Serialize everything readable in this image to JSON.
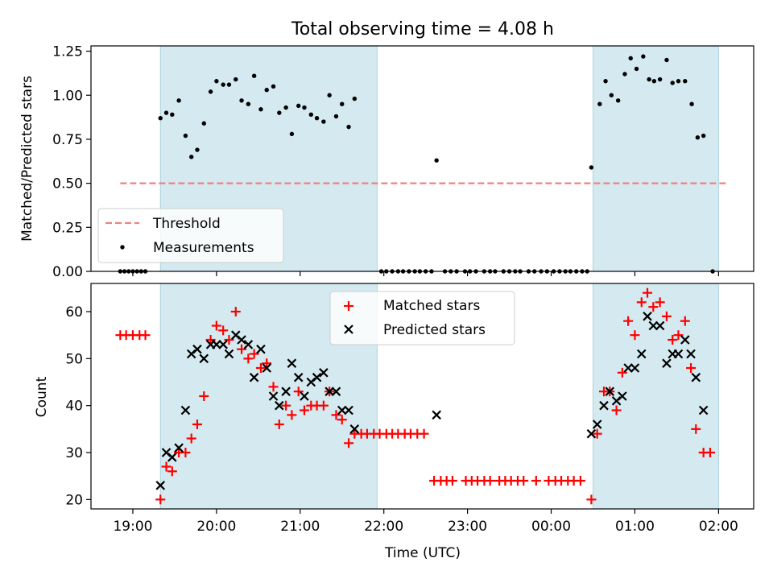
{
  "chart_data": [
    {
      "type": "scatter",
      "title": "Total observing time = 4.08 h",
      "xlabel": "",
      "ylabel": "Matched/Predicted stars",
      "ylim": [
        0,
        1.28
      ],
      "yticks": [
        0.0,
        0.25,
        0.5,
        0.75,
        1.0,
        1.25
      ],
      "ytick_labels": [
        "0.00",
        "0.25",
        "0.50",
        "0.75",
        "1.00",
        "1.25"
      ],
      "x_unit": "hours since 19:00 UTC",
      "shaded_intervals": [
        [
          0.33,
          2.92
        ],
        [
          5.5,
          7.0
        ]
      ],
      "shade_color": "#d4eaf0",
      "threshold": 0.5,
      "threshold_color": "#f08080",
      "legend": {
        "placement": "lower-left",
        "entries": [
          "Threshold",
          "Measurements"
        ]
      },
      "series": [
        {
          "name": "Measurements",
          "color": "#000000",
          "points": [
            [
              -0.15,
              0.0
            ],
            [
              -0.1,
              0.0
            ],
            [
              -0.05,
              0.0
            ],
            [
              0.0,
              0.0
            ],
            [
              0.05,
              0.0
            ],
            [
              0.1,
              0.0
            ],
            [
              0.15,
              0.0
            ],
            [
              0.33,
              0.87
            ],
            [
              0.4,
              0.9
            ],
            [
              0.47,
              0.89
            ],
            [
              0.55,
              0.97
            ],
            [
              0.63,
              0.77
            ],
            [
              0.7,
              0.65
            ],
            [
              0.77,
              0.69
            ],
            [
              0.85,
              0.84
            ],
            [
              0.93,
              1.02
            ],
            [
              1.0,
              1.08
            ],
            [
              1.08,
              1.06
            ],
            [
              1.15,
              1.06
            ],
            [
              1.23,
              1.09
            ],
            [
              1.3,
              0.97
            ],
            [
              1.38,
              0.95
            ],
            [
              1.45,
              1.11
            ],
            [
              1.53,
              0.92
            ],
            [
              1.6,
              1.03
            ],
            [
              1.68,
              1.05
            ],
            [
              1.75,
              0.9
            ],
            [
              1.83,
              0.93
            ],
            [
              1.9,
              0.78
            ],
            [
              1.98,
              0.94
            ],
            [
              2.05,
              0.93
            ],
            [
              2.13,
              0.89
            ],
            [
              2.2,
              0.87
            ],
            [
              2.28,
              0.85
            ],
            [
              2.35,
              1.0
            ],
            [
              2.43,
              0.88
            ],
            [
              2.5,
              0.95
            ],
            [
              2.58,
              0.82
            ],
            [
              2.65,
              0.98
            ],
            [
              2.97,
              0.0
            ],
            [
              3.03,
              0.0
            ],
            [
              3.1,
              0.0
            ],
            [
              3.17,
              0.0
            ],
            [
              3.23,
              0.0
            ],
            [
              3.3,
              0.0
            ],
            [
              3.37,
              0.0
            ],
            [
              3.43,
              0.0
            ],
            [
              3.5,
              0.0
            ],
            [
              3.57,
              0.0
            ],
            [
              3.63,
              0.63
            ],
            [
              3.73,
              0.0
            ],
            [
              3.8,
              0.0
            ],
            [
              3.87,
              0.0
            ],
            [
              3.97,
              0.0
            ],
            [
              4.03,
              0.0
            ],
            [
              4.1,
              0.0
            ],
            [
              4.2,
              0.0
            ],
            [
              4.27,
              0.0
            ],
            [
              4.33,
              0.0
            ],
            [
              4.43,
              0.0
            ],
            [
              4.5,
              0.0
            ],
            [
              4.57,
              0.0
            ],
            [
              4.63,
              0.0
            ],
            [
              4.73,
              0.0
            ],
            [
              4.8,
              0.0
            ],
            [
              4.88,
              0.0
            ],
            [
              4.95,
              0.0
            ],
            [
              5.03,
              0.0
            ],
            [
              5.1,
              0.0
            ],
            [
              5.17,
              0.0
            ],
            [
              5.23,
              0.0
            ],
            [
              5.3,
              0.0
            ],
            [
              5.37,
              0.0
            ],
            [
              5.43,
              0.0
            ],
            [
              5.48,
              0.59
            ],
            [
              5.58,
              0.95
            ],
            [
              5.65,
              1.08
            ],
            [
              5.72,
              1.0
            ],
            [
              5.8,
              0.97
            ],
            [
              5.88,
              1.12
            ],
            [
              5.95,
              1.21
            ],
            [
              6.02,
              1.15
            ],
            [
              6.1,
              1.22
            ],
            [
              6.17,
              1.09
            ],
            [
              6.23,
              1.08
            ],
            [
              6.3,
              1.09
            ],
            [
              6.38,
              1.2
            ],
            [
              6.45,
              1.07
            ],
            [
              6.52,
              1.08
            ],
            [
              6.6,
              1.08
            ],
            [
              6.68,
              0.95
            ],
            [
              6.75,
              0.76
            ],
            [
              6.82,
              0.77
            ],
            [
              6.93,
              0.0
            ]
          ]
        }
      ]
    },
    {
      "type": "scatter",
      "title": "",
      "xlabel": "Time (UTC)",
      "ylabel": "Count",
      "ylim": [
        18,
        66
      ],
      "yticks": [
        20,
        30,
        40,
        50,
        60
      ],
      "xticks": [
        0,
        1,
        2,
        3,
        4,
        5,
        6,
        7
      ],
      "xtick_labels": [
        "19:00",
        "20:00",
        "21:00",
        "22:00",
        "23:00",
        "00:00",
        "01:00",
        "02:00"
      ],
      "x_unit": "hours since 19:00 UTC",
      "xlim": [
        -0.5,
        7.42
      ],
      "shaded_intervals": [
        [
          0.33,
          2.92
        ],
        [
          5.5,
          7.0
        ]
      ],
      "shade_color": "#d4eaf0",
      "legend": {
        "placement": "upper-center",
        "entries": [
          "Matched stars",
          "Predicted stars"
        ]
      },
      "series": [
        {
          "name": "Matched stars",
          "color": "#ff0000",
          "marker": "plus",
          "points": [
            [
              -0.15,
              55
            ],
            [
              -0.08,
              55
            ],
            [
              0.0,
              55
            ],
            [
              0.08,
              55
            ],
            [
              0.15,
              55
            ],
            [
              0.33,
              20
            ],
            [
              0.4,
              27
            ],
            [
              0.47,
              26
            ],
            [
              0.55,
              30
            ],
            [
              0.63,
              30
            ],
            [
              0.7,
              33
            ],
            [
              0.77,
              36
            ],
            [
              0.85,
              42
            ],
            [
              0.93,
              54
            ],
            [
              1.0,
              57
            ],
            [
              1.08,
              56
            ],
            [
              1.15,
              54
            ],
            [
              1.23,
              60
            ],
            [
              1.3,
              52
            ],
            [
              1.38,
              50
            ],
            [
              1.45,
              51
            ],
            [
              1.53,
              48
            ],
            [
              1.6,
              49
            ],
            [
              1.68,
              44
            ],
            [
              1.75,
              36
            ],
            [
              1.83,
              40
            ],
            [
              1.9,
              38
            ],
            [
              1.98,
              43
            ],
            [
              2.05,
              39
            ],
            [
              2.13,
              40
            ],
            [
              2.2,
              40
            ],
            [
              2.28,
              40
            ],
            [
              2.35,
              43
            ],
            [
              2.43,
              38
            ],
            [
              2.5,
              37
            ],
            [
              2.58,
              32
            ],
            [
              2.65,
              34
            ],
            [
              2.73,
              34
            ],
            [
              2.8,
              34
            ],
            [
              2.88,
              34
            ],
            [
              2.95,
              34
            ],
            [
              3.03,
              34
            ],
            [
              3.1,
              34
            ],
            [
              3.17,
              34
            ],
            [
              3.25,
              34
            ],
            [
              3.32,
              34
            ],
            [
              3.4,
              34
            ],
            [
              3.48,
              34
            ],
            [
              3.6,
              24
            ],
            [
              3.68,
              24
            ],
            [
              3.75,
              24
            ],
            [
              3.82,
              24
            ],
            [
              3.98,
              24
            ],
            [
              4.05,
              24
            ],
            [
              4.12,
              24
            ],
            [
              4.2,
              24
            ],
            [
              4.27,
              24
            ],
            [
              4.38,
              24
            ],
            [
              4.45,
              24
            ],
            [
              4.52,
              24
            ],
            [
              4.6,
              24
            ],
            [
              4.67,
              24
            ],
            [
              4.82,
              24
            ],
            [
              4.97,
              24
            ],
            [
              5.05,
              24
            ],
            [
              5.12,
              24
            ],
            [
              5.2,
              24
            ],
            [
              5.27,
              24
            ],
            [
              5.35,
              24
            ],
            [
              5.48,
              20
            ],
            [
              5.55,
              34
            ],
            [
              5.63,
              43
            ],
            [
              5.7,
              43
            ],
            [
              5.78,
              39
            ],
            [
              5.85,
              47
            ],
            [
              5.92,
              58
            ],
            [
              6.0,
              55
            ],
            [
              6.08,
              62
            ],
            [
              6.15,
              64
            ],
            [
              6.22,
              61
            ],
            [
              6.3,
              62
            ],
            [
              6.38,
              59
            ],
            [
              6.45,
              54
            ],
            [
              6.52,
              55
            ],
            [
              6.6,
              58
            ],
            [
              6.67,
              48
            ],
            [
              6.73,
              35
            ],
            [
              6.82,
              30
            ],
            [
              6.9,
              30
            ]
          ]
        },
        {
          "name": "Predicted stars",
          "color": "#000000",
          "marker": "x",
          "points": [
            [
              0.33,
              23
            ],
            [
              0.4,
              30
            ],
            [
              0.47,
              29
            ],
            [
              0.55,
              31
            ],
            [
              0.63,
              39
            ],
            [
              0.7,
              51
            ],
            [
              0.77,
              52
            ],
            [
              0.85,
              50
            ],
            [
              0.93,
              53
            ],
            [
              1.0,
              53
            ],
            [
              1.08,
              53
            ],
            [
              1.15,
              51
            ],
            [
              1.23,
              55
            ],
            [
              1.3,
              54
            ],
            [
              1.38,
              53
            ],
            [
              1.45,
              46
            ],
            [
              1.53,
              52
            ],
            [
              1.6,
              48
            ],
            [
              1.68,
              42
            ],
            [
              1.75,
              40
            ],
            [
              1.83,
              43
            ],
            [
              1.9,
              49
            ],
            [
              1.98,
              46
            ],
            [
              2.05,
              42
            ],
            [
              2.13,
              45
            ],
            [
              2.2,
              46
            ],
            [
              2.28,
              47
            ],
            [
              2.35,
              43
            ],
            [
              2.43,
              43
            ],
            [
              2.5,
              39
            ],
            [
              2.58,
              39
            ],
            [
              2.65,
              35
            ],
            [
              3.63,
              38
            ],
            [
              5.48,
              34
            ],
            [
              5.55,
              36
            ],
            [
              5.63,
              40
            ],
            [
              5.7,
              43
            ],
            [
              5.78,
              41
            ],
            [
              5.85,
              42
            ],
            [
              5.92,
              48
            ],
            [
              6.0,
              48
            ],
            [
              6.08,
              51
            ],
            [
              6.15,
              59
            ],
            [
              6.22,
              57
            ],
            [
              6.3,
              57
            ],
            [
              6.38,
              49
            ],
            [
              6.45,
              51
            ],
            [
              6.52,
              51
            ],
            [
              6.6,
              54
            ],
            [
              6.67,
              51
            ],
            [
              6.73,
              46
            ],
            [
              6.82,
              39
            ]
          ]
        }
      ]
    }
  ]
}
